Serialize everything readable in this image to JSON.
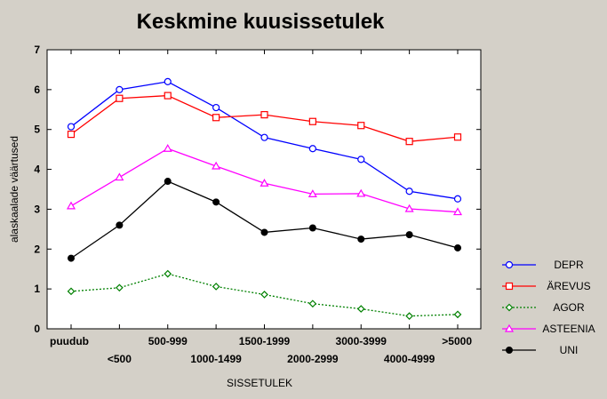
{
  "chart_data": {
    "type": "line",
    "title": "Keskmine kuusissetulek",
    "xlabel": "SISSETULEK",
    "ylabel": "alaskaalade väärtused",
    "ylim": [
      0,
      7
    ],
    "yticks": [
      "0",
      "1",
      "2",
      "3",
      "4",
      "5",
      "6",
      "7"
    ],
    "categories": [
      "puudub",
      "<500",
      "500-999",
      "1000-1499",
      "1500-1999",
      "2000-2999",
      "3000-3999",
      "4000-4999",
      ">5000"
    ],
    "grid": false,
    "legend_position": "right",
    "series": [
      {
        "name": "DEPR",
        "color": "#0000ff",
        "marker": "circle-open",
        "dash": "solid",
        "values": [
          5.07,
          6.0,
          6.2,
          5.55,
          4.8,
          4.52,
          4.25,
          3.45,
          3.26
        ]
      },
      {
        "name": "ÄREVUS",
        "color": "#ff0000",
        "marker": "square-open",
        "dash": "solid",
        "values": [
          4.88,
          5.78,
          5.85,
          5.3,
          5.37,
          5.2,
          5.1,
          4.7,
          4.81
        ]
      },
      {
        "name": "AGOR",
        "color": "#008000",
        "marker": "diamond-open",
        "dash": "dotted",
        "values": [
          0.94,
          1.03,
          1.38,
          1.06,
          0.86,
          0.63,
          0.5,
          0.32,
          0.36
        ]
      },
      {
        "name": "ASTEENIA",
        "color": "#ff00ff",
        "marker": "triangle-open",
        "dash": "solid",
        "values": [
          3.08,
          3.8,
          4.52,
          4.08,
          3.65,
          3.38,
          3.39,
          3.01,
          2.93
        ]
      },
      {
        "name": "UNI",
        "color": "#000000",
        "marker": "circle-filled",
        "dash": "solid",
        "values": [
          1.77,
          2.6,
          3.7,
          3.18,
          2.42,
          2.53,
          2.25,
          2.36,
          2.03
        ]
      }
    ]
  }
}
